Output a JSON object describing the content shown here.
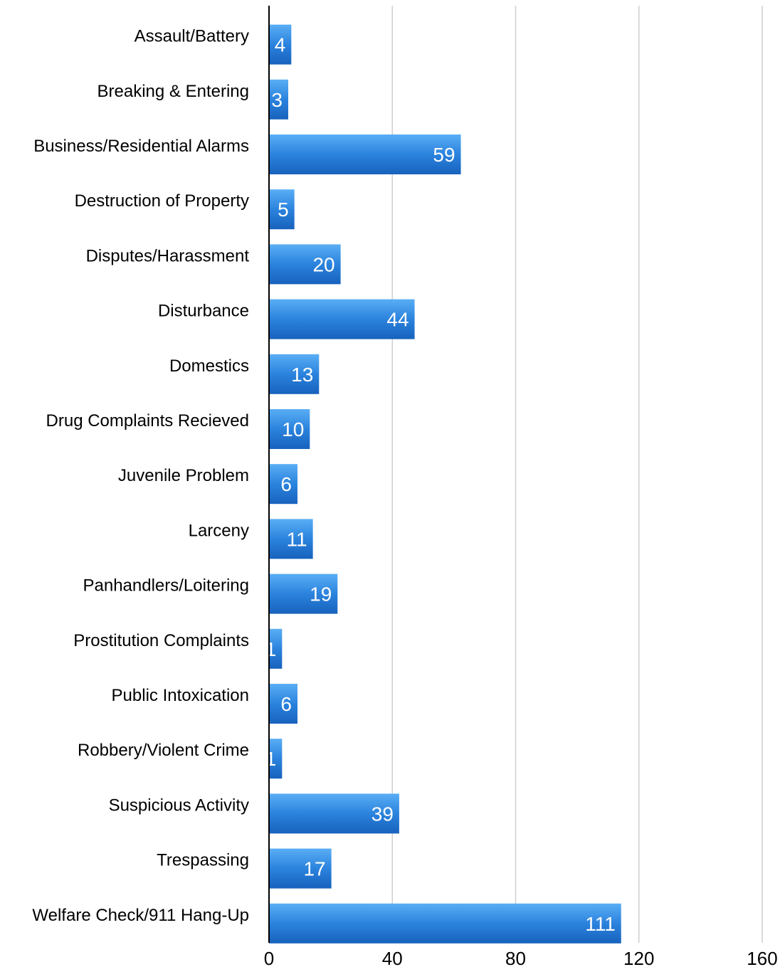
{
  "chart_data": {
    "type": "bar",
    "orientation": "horizontal",
    "categories": [
      "Assault/Battery",
      "Breaking & Entering",
      "Business/Residential Alarms",
      "Destruction of Property",
      "Disputes/Harassment",
      "Disturbance",
      "Domestics",
      "Drug Complaints Recieved",
      "Juvenile Problem",
      "Larceny",
      "Panhandlers/Loitering",
      "Prostitution Complaints",
      "Public Intoxication",
      "Robbery/Violent Crime",
      "Suspicious Activity",
      "Trespassing",
      "Welfare Check/911 Hang-Up"
    ],
    "values": [
      4,
      3,
      59,
      5,
      20,
      44,
      13,
      10,
      6,
      11,
      19,
      1,
      6,
      1,
      39,
      17,
      111
    ],
    "xlim": [
      0,
      160
    ],
    "xticks": [
      "0",
      "40",
      "80",
      "120",
      "160"
    ],
    "grid": true,
    "legend": "none",
    "bar_color": "#2b7fd6"
  }
}
